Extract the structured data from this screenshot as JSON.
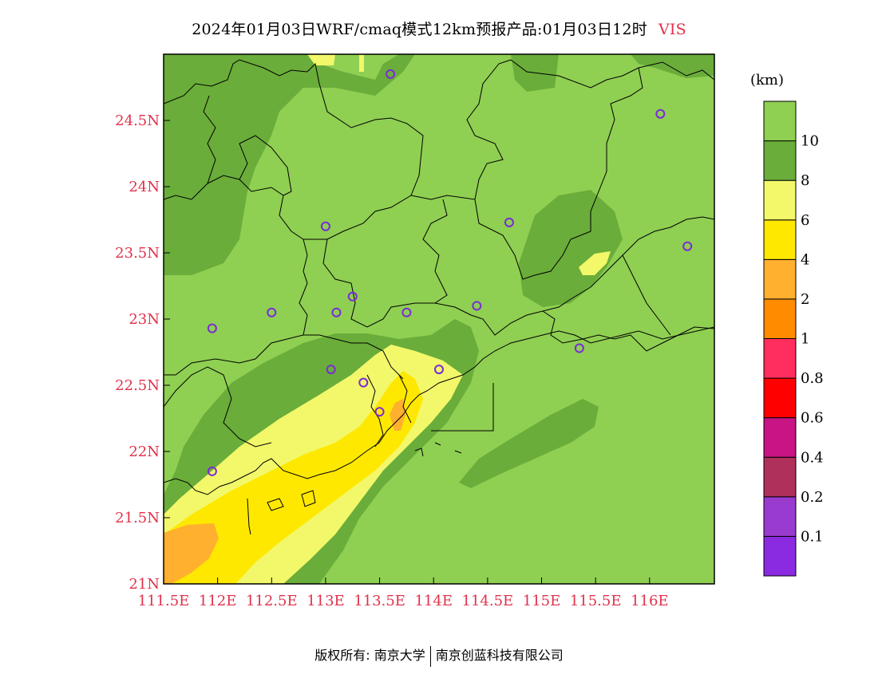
{
  "title": "2024年01月03日WRF/cmaq模式12km预报产品:01月03日12时",
  "variable": "VIS",
  "unit": "(km)",
  "map": {
    "lon_range": [
      111.5,
      116.6
    ],
    "lat_range": [
      21.0,
      25.0
    ],
    "lon_ticks": [
      "111.5E",
      "112E",
      "112.5E",
      "113E",
      "113.5E",
      "114E",
      "114.5E",
      "115E",
      "115.5E",
      "116E"
    ],
    "lat_ticks": [
      "21N",
      "21.5N",
      "22N",
      "22.5N",
      "23N",
      "23.5N",
      "24N",
      "24.5N"
    ],
    "stations": [
      {
        "lon": 113.6,
        "lat": 24.85
      },
      {
        "lon": 116.1,
        "lat": 24.55
      },
      {
        "lon": 113.0,
        "lat": 23.7
      },
      {
        "lon": 114.7,
        "lat": 23.73
      },
      {
        "lon": 116.35,
        "lat": 23.55
      },
      {
        "lon": 112.5,
        "lat": 23.05
      },
      {
        "lon": 113.25,
        "lat": 23.17
      },
      {
        "lon": 113.1,
        "lat": 23.05
      },
      {
        "lon": 113.75,
        "lat": 23.05
      },
      {
        "lon": 114.4,
        "lat": 23.1
      },
      {
        "lon": 111.95,
        "lat": 22.93
      },
      {
        "lon": 115.35,
        "lat": 22.78
      },
      {
        "lon": 113.05,
        "lat": 22.62
      },
      {
        "lon": 113.35,
        "lat": 22.52
      },
      {
        "lon": 114.05,
        "lat": 22.62
      },
      {
        "lon": 113.5,
        "lat": 22.3
      },
      {
        "lon": 111.95,
        "lat": 21.85
      }
    ]
  },
  "colorbar": {
    "colors": [
      "#8a2be2",
      "#9a3bd0",
      "#b0305c",
      "#c81484",
      "#ff0000",
      "#ff2e5e",
      "#ff8c00",
      "#ffb02e",
      "#ffe800",
      "#f2f86a",
      "#6aad3a",
      "#8fcf52"
    ],
    "labels": [
      "0.1",
      "0.2",
      "0.4",
      "0.6",
      "0.8",
      "1",
      "2",
      "4",
      "6",
      "8",
      "10"
    ]
  },
  "footer": {
    "left": "版权所有: 南京大学",
    "right": "南京创蓝科技有限公司"
  }
}
